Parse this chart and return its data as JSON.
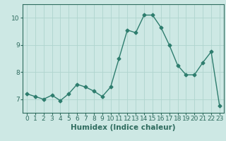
{
  "x": [
    0,
    1,
    2,
    3,
    4,
    5,
    6,
    7,
    8,
    9,
    10,
    11,
    12,
    13,
    14,
    15,
    16,
    17,
    18,
    19,
    20,
    21,
    22,
    23
  ],
  "y": [
    7.2,
    7.1,
    7.0,
    7.15,
    6.95,
    7.2,
    7.55,
    7.45,
    7.3,
    7.1,
    7.45,
    8.5,
    9.55,
    9.45,
    10.1,
    10.1,
    9.65,
    9.0,
    8.25,
    7.9,
    7.9,
    8.35,
    8.75,
    6.75
  ],
  "line_color": "#2e7d6e",
  "marker": "D",
  "markersize": 2.5,
  "linewidth": 1.0,
  "bg_color": "#cde8e4",
  "grid_color": "#afd4ce",
  "xlabel": "Humidex (Indice chaleur)",
  "ylabel": "",
  "xlim": [
    -0.5,
    23.5
  ],
  "ylim": [
    6.5,
    10.5
  ],
  "yticks": [
    7,
    8,
    9,
    10
  ],
  "xticks": [
    0,
    1,
    2,
    3,
    4,
    5,
    6,
    7,
    8,
    9,
    10,
    11,
    12,
    13,
    14,
    15,
    16,
    17,
    18,
    19,
    20,
    21,
    22,
    23
  ],
  "xlabel_fontsize": 7.5,
  "tick_fontsize": 6.5,
  "tick_color": "#2e6b5e",
  "spine_color": "#2e6b5e"
}
